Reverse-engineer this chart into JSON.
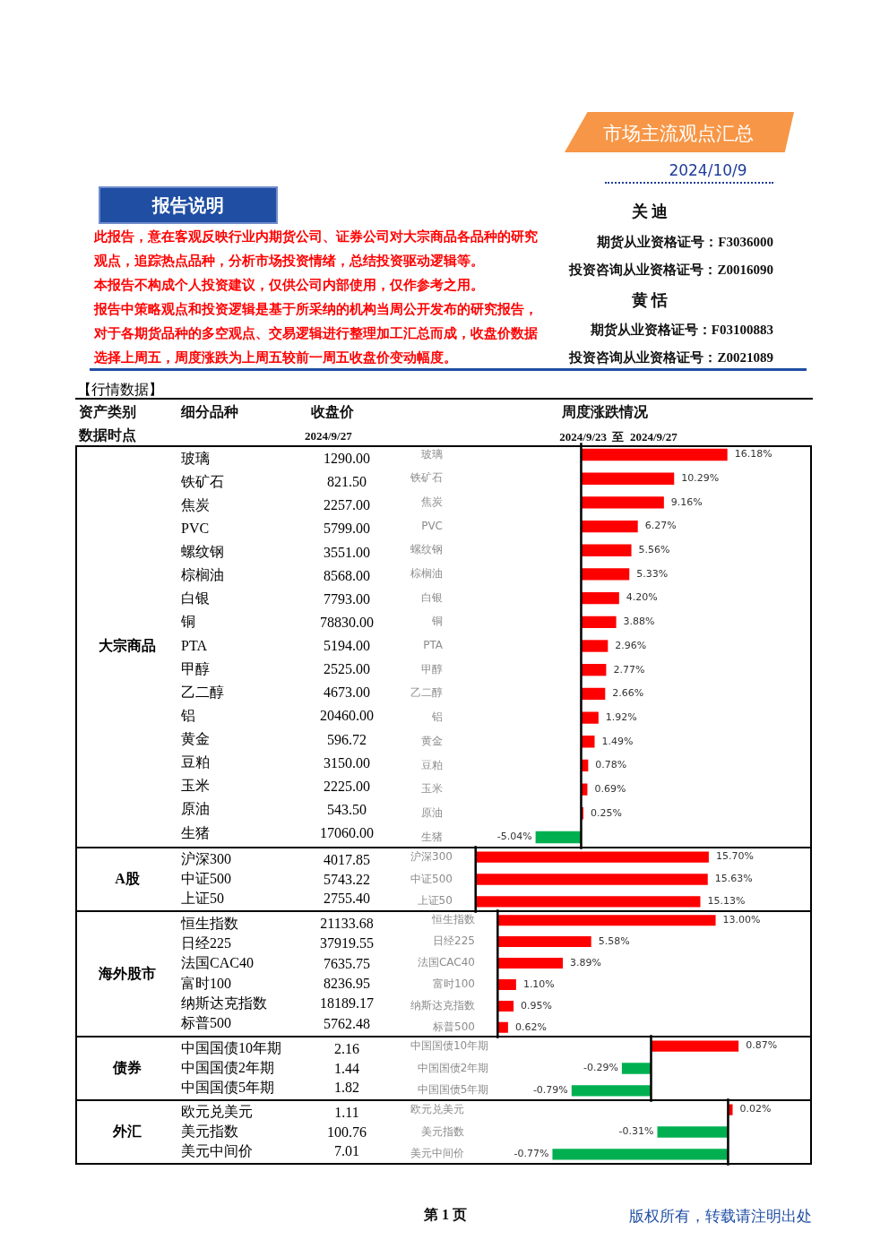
{
  "chart_data": [
    {
      "type": "other",
      "title": "市场主流观点汇总",
      "subtitle": "2024/10/9",
      "annotations": [
        "报告说明",
        "此报告，意在客观反映行业内期货公司、证券公司对大宗商品各品种的研究观点，追踪热点品种，分析市场投资情绪，总结投资驱动逻辑等。",
        "本报告不构成个人投资建议，仅供公司内部使用，仅作参考之用。",
        "报告中策略观点和投资逻辑是基于所采纳的机构当周公开发布的研究报告，对于各期货品种的多空观点、交易逻辑进行整理加工汇总而成，收盘价数据选择上周五，周度涨跌为上周五较前一周五收盘价变动幅度。",
        "关 迪",
        "期货从业资格证号：F3036000",
        "投资咨询从业资格证号：Z0016090",
        "黄 恬",
        "期货从业资格证号：F03100883",
        "投资咨询从业资格证号：Z0021089",
        "【行情数据】",
        "资产类别",
        "细分品种",
        "收盘价",
        "周度涨跌情况",
        "数据时点",
        "2024/9/27",
        "2024/9/23  至  2024/9/27",
        "第 1 页",
        "版权所有，转载请注明出处"
      ]
    },
    {
      "type": "bar",
      "orientation": "horizontal",
      "ylabel": "大宗商品",
      "categories": [
        "玻璃",
        "铁矿石",
        "焦炭",
        "PVC",
        "螺纹钢",
        "棕榈油",
        "白银",
        "铜",
        "PTA",
        "甲醇",
        "乙二醇",
        "铝",
        "黄金",
        "豆粕",
        "玉米",
        "原油",
        "生猪"
      ],
      "values": [
        16.18,
        10.29,
        9.16,
        6.27,
        5.56,
        5.33,
        4.2,
        3.88,
        2.96,
        2.77,
        2.66,
        1.92,
        1.49,
        0.78,
        0.69,
        0.25,
        -5.04
      ],
      "colors": [
        "#ff0000",
        "#ff0000",
        "#ff0000",
        "#ff0000",
        "#ff0000",
        "#ff0000",
        "#ff0000",
        "#ff0000",
        "#ff0000",
        "#ff0000",
        "#ff0000",
        "#ff0000",
        "#ff0000",
        "#ff0000",
        "#ff0000",
        "#ff0000",
        "#00b050"
      ],
      "value_labels": [
        "16.18%",
        "10.29%",
        "9.16%",
        "6.27%",
        "5.56%",
        "5.33%",
        "4.20%",
        "3.88%",
        "2.96%",
        "2.77%",
        "2.66%",
        "1.92%",
        "1.49%",
        "0.78%",
        "0.69%",
        "0.25%",
        "-5.04%"
      ],
      "annotations": [
        "1290.00",
        "821.50",
        "2257.00",
        "5799.00",
        "3551.00",
        "8568.00",
        "7793.00",
        "78830.00",
        "5194.00",
        "2525.00",
        "4673.00",
        "20460.00",
        "596.72",
        "3150.00",
        "2225.00",
        "543.50",
        "17060.00"
      ]
    },
    {
      "type": "bar",
      "orientation": "horizontal",
      "ylabel": "A股",
      "categories": [
        "沪深300",
        "中证500",
        "上证50"
      ],
      "values": [
        15.7,
        15.63,
        15.13
      ],
      "colors": [
        "#ff0000",
        "#ff0000",
        "#ff0000"
      ],
      "value_labels": [
        "15.70%",
        "15.63%",
        "15.13%"
      ],
      "annotations": [
        "4017.85",
        "5743.22",
        "2755.40"
      ]
    },
    {
      "type": "bar",
      "orientation": "horizontal",
      "ylabel": "海外股市",
      "categories": [
        "恒生指数",
        "日经225",
        "法国CAC40",
        "富时100",
        "纳斯达克指数",
        "标普500"
      ],
      "values": [
        13.0,
        5.58,
        3.89,
        1.1,
        0.95,
        0.62
      ],
      "colors": [
        "#ff0000",
        "#ff0000",
        "#ff0000",
        "#ff0000",
        "#ff0000",
        "#ff0000"
      ],
      "value_labels": [
        "13.00%",
        "5.58%",
        "3.89%",
        "1.10%",
        "0.95%",
        "0.62%"
      ],
      "annotations": [
        "21133.68",
        "37919.55",
        "7635.75",
        "8236.95",
        "18189.17",
        "5762.48"
      ]
    },
    {
      "type": "bar",
      "orientation": "horizontal",
      "ylabel": "债券",
      "categories": [
        "中国国债10年期",
        "中国国债2年期",
        "中国国债5年期"
      ],
      "values": [
        0.87,
        -0.29,
        -0.79
      ],
      "colors": [
        "#ff0000",
        "#00b050",
        "#00b050"
      ],
      "value_labels": [
        "0.87%",
        "-0.29%",
        "-0.79%"
      ],
      "annotations": [
        "2.16",
        "1.44",
        "1.82"
      ]
    },
    {
      "type": "bar",
      "orientation": "horizontal",
      "ylabel": "外汇",
      "categories": [
        "欧元兑美元",
        "美元指数",
        "美元中间价"
      ],
      "values": [
        0.02,
        -0.31,
        -0.77
      ],
      "colors": [
        "#ff0000",
        "#00b050",
        "#00b050"
      ],
      "value_labels": [
        "0.02%",
        "-0.31%",
        "-0.77%"
      ],
      "annotations": [
        "1.11",
        "100.76",
        "7.01"
      ]
    }
  ]
}
